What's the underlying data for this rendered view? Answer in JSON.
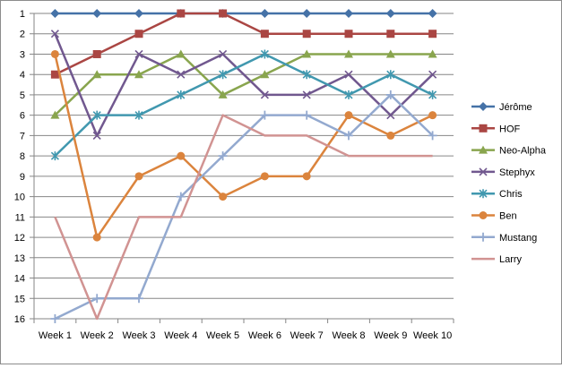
{
  "chart_data": {
    "type": "line",
    "title": "",
    "xlabel": "",
    "ylabel": "",
    "y_inverted": true,
    "ylim": [
      1,
      16
    ],
    "yticks": [
      "1",
      "2",
      "3",
      "4",
      "5",
      "6",
      "7",
      "8",
      "9",
      "10",
      "11",
      "12",
      "13",
      "14",
      "15",
      "16"
    ],
    "categories": [
      "Week 1",
      "Week 2",
      "Week 3",
      "Week 4",
      "Week 5",
      "Week 6",
      "Week 7",
      "Week 8",
      "Week 9",
      "Week 10"
    ],
    "grid": true,
    "legend_position": "right",
    "series": [
      {
        "name": "Jérôme",
        "color": "#4572A7",
        "marker": "diamond",
        "values": [
          1,
          1,
          1,
          1,
          1,
          1,
          1,
          1,
          1,
          1
        ]
      },
      {
        "name": "HOF",
        "color": "#AA4643",
        "marker": "square",
        "values": [
          4,
          3,
          2,
          1,
          1,
          2,
          2,
          2,
          2,
          2
        ]
      },
      {
        "name": "Neo-Alpha",
        "color": "#89A54E",
        "marker": "triangle",
        "values": [
          6,
          4,
          4,
          3,
          5,
          4,
          3,
          3,
          3,
          3
        ]
      },
      {
        "name": "Stephyx",
        "color": "#71588F",
        "marker": "x",
        "values": [
          2,
          7,
          3,
          4,
          3,
          5,
          5,
          4,
          6,
          4
        ]
      },
      {
        "name": "Chris",
        "color": "#4198AF",
        "marker": "star",
        "values": [
          8,
          6,
          6,
          5,
          4,
          3,
          4,
          5,
          4,
          5
        ]
      },
      {
        "name": "Ben",
        "color": "#DB843D",
        "marker": "circle",
        "values": [
          3,
          12,
          9,
          8,
          10,
          9,
          9,
          6,
          7,
          6
        ]
      },
      {
        "name": "Mustang",
        "color": "#93A9CF",
        "marker": "plus",
        "values": [
          16,
          15,
          15,
          10,
          8,
          6,
          6,
          7,
          5,
          7
        ]
      },
      {
        "name": "Larry",
        "color": "#D19392",
        "marker": "none",
        "values": [
          11,
          16,
          11,
          11,
          6,
          7,
          7,
          8,
          8,
          8
        ]
      }
    ]
  }
}
